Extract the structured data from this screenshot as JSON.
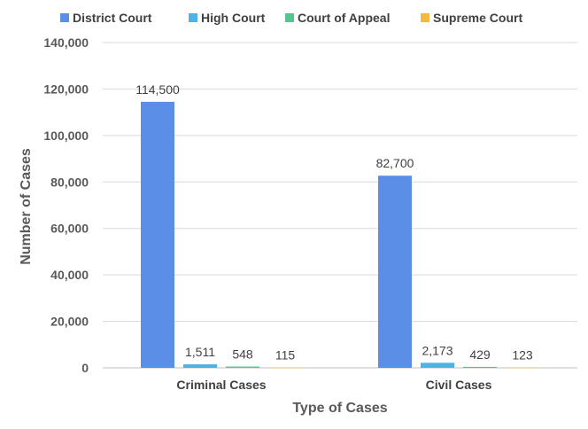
{
  "chart_data": {
    "type": "bar",
    "title": "",
    "xlabel": "Type of Cases",
    "ylabel": "Number of Cases",
    "categories": [
      "Criminal Cases",
      "Civil Cases"
    ],
    "series": [
      {
        "name": "District Court",
        "color": "#5b8ee6",
        "values": [
          114500,
          82700
        ]
      },
      {
        "name": "High Court",
        "color": "#4db3e6",
        "values": [
          1511,
          2173
        ]
      },
      {
        "name": "Court of Appeal",
        "color": "#57c48f",
        "values": [
          548,
          429
        ]
      },
      {
        "name": "Supreme Court",
        "color": "#f5b942",
        "values": [
          115,
          123
        ]
      }
    ],
    "ylim": [
      0,
      140000
    ],
    "yticks": [
      "0",
      "20,000",
      "40,000",
      "60,000",
      "80,000",
      "100,000",
      "120,000",
      "140,000"
    ],
    "data_labels": [
      [
        "114,500",
        "82,700"
      ],
      [
        "1,511",
        "2,173"
      ],
      [
        "548",
        "429"
      ],
      [
        "115",
        "123"
      ]
    ],
    "grid": true,
    "legend_position": "top"
  }
}
